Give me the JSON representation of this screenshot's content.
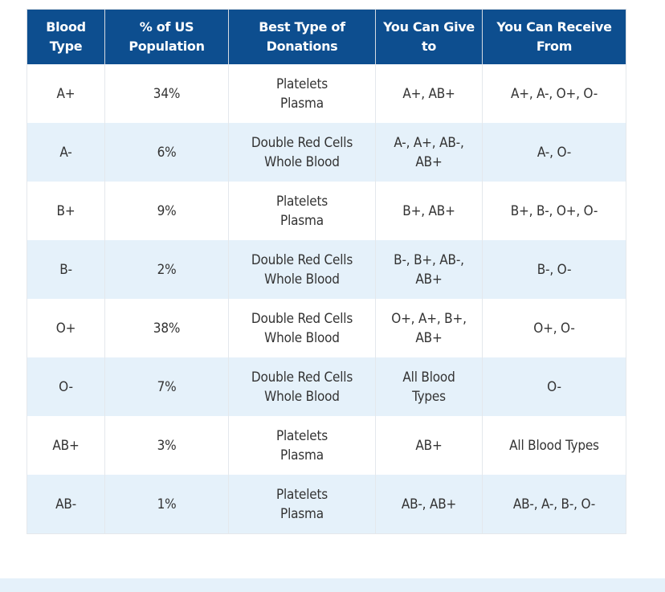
{
  "table": {
    "headers": [
      [
        "Blood",
        "Type"
      ],
      [
        "% of US",
        "Population"
      ],
      [
        "Best Type of",
        "Donations"
      ],
      [
        "You Can Give",
        "to"
      ],
      [
        "You Can Receive",
        "From"
      ]
    ],
    "rows": [
      {
        "type": "A+",
        "population": "34%",
        "donations": [
          "Platelets",
          "Plasma"
        ],
        "give": [
          "A+, AB+"
        ],
        "receive": [
          "A+, A-, O+, O-"
        ]
      },
      {
        "type": "A-",
        "population": "6%",
        "donations": [
          "Double Red Cells",
          "Whole Blood"
        ],
        "give": [
          "A-, A+, AB-,",
          "AB+"
        ],
        "receive": [
          "A-, O-"
        ]
      },
      {
        "type": "B+",
        "population": "9%",
        "donations": [
          "Platelets",
          "Plasma"
        ],
        "give": [
          "B+, AB+"
        ],
        "receive": [
          "B+, B-, O+, O-"
        ]
      },
      {
        "type": "B-",
        "population": "2%",
        "donations": [
          "Double Red Cells",
          "Whole Blood"
        ],
        "give": [
          "B-, B+, AB-,",
          "AB+"
        ],
        "receive": [
          "B-, O-"
        ]
      },
      {
        "type": "O+",
        "population": "38%",
        "donations": [
          "Double Red Cells",
          "Whole Blood"
        ],
        "give": [
          "O+, A+, B+,",
          "AB+"
        ],
        "receive": [
          "O+, O-"
        ]
      },
      {
        "type": "O-",
        "population": "7%",
        "donations": [
          "Double Red Cells",
          "Whole Blood"
        ],
        "give": [
          "All Blood",
          "Types"
        ],
        "receive": [
          "O-"
        ]
      },
      {
        "type": "AB+",
        "population": "3%",
        "donations": [
          "Platelets",
          "Plasma"
        ],
        "give": [
          "AB+"
        ],
        "receive": [
          "All Blood Types"
        ]
      },
      {
        "type": "AB-",
        "population": "1%",
        "donations": [
          "Platelets",
          "Plasma"
        ],
        "give": [
          "AB-, AB+"
        ],
        "receive": [
          "AB-, A-, B-, O-"
        ]
      }
    ]
  }
}
